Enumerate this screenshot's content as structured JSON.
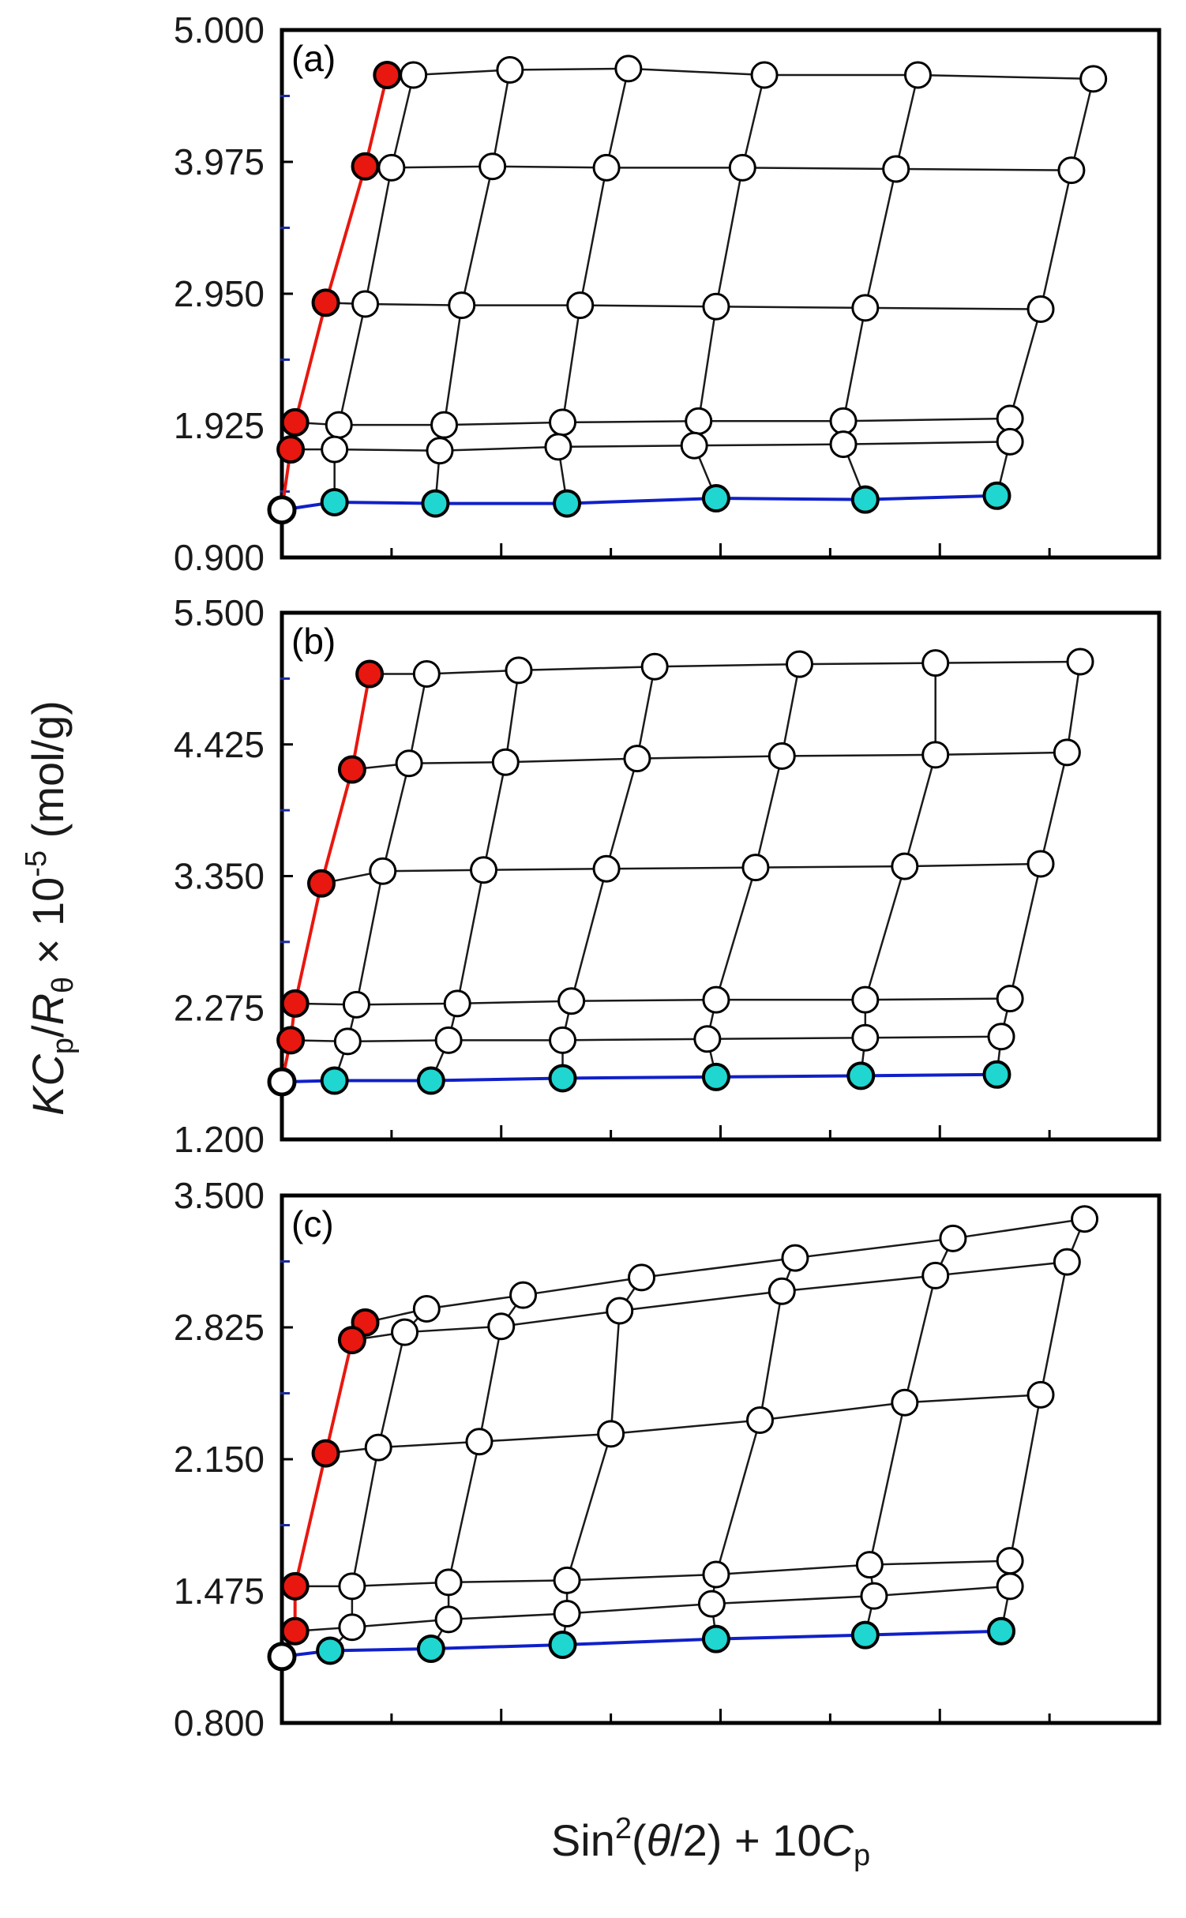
{
  "figure": {
    "ylabel": {
      "K": "K",
      "Cp_main": "C",
      "Cp_sub": "p",
      "slash": "/",
      "R_main": "R",
      "R_sub": "θ",
      "rest": " × 10",
      "exp": "-5",
      "unit": " (mol/g)"
    },
    "xlabel": {
      "sin": "Sin",
      "exp": "2",
      "open": "(",
      "theta": "θ",
      "close": "/2) + 10",
      "C": "C",
      "sub": "p"
    }
  },
  "colors": {
    "red": "#e8170f",
    "blue": "#1020c8",
    "cyan": "#1fd6d0",
    "white": "#ffffff",
    "grid_line": "#1a1a1a",
    "minor_tick": "#1a2aa0"
  },
  "chart_data": [
    {
      "type": "scatter",
      "panel_label": "(a)",
      "ylim": [
        0.9,
        5.0
      ],
      "yticks": [
        "0.900",
        "1.925",
        "2.950",
        "3.975",
        "5.000"
      ],
      "x_grid": [
        [
          0.3,
          0.52,
          0.79,
          1.1,
          1.45,
          1.85
        ],
        [
          0.25,
          0.48,
          0.74,
          1.05,
          1.4,
          1.8
        ],
        [
          0.19,
          0.41,
          0.68,
          0.99,
          1.33,
          1.73
        ],
        [
          0.13,
          0.37,
          0.64,
          0.95,
          1.28,
          1.66
        ],
        [
          0.12,
          0.36,
          0.63,
          0.94,
          1.28,
          1.66
        ]
      ],
      "y_grid": [
        [
          4.65,
          4.69,
          4.7,
          4.65,
          4.65,
          4.62
        ],
        [
          3.93,
          3.94,
          3.93,
          3.93,
          3.92,
          3.91
        ],
        [
          2.87,
          2.86,
          2.86,
          2.85,
          2.84,
          2.83
        ],
        [
          1.93,
          1.93,
          1.95,
          1.96,
          1.96,
          1.98
        ],
        [
          1.74,
          1.73,
          1.76,
          1.77,
          1.78,
          1.8
        ]
      ],
      "extrap_c": [
        0.24,
        0.19,
        0.1,
        0.03,
        0.02
      ],
      "extrap_y": [
        4.65,
        3.94,
        2.88,
        1.95,
        1.74
      ],
      "zero_c_x": [
        0.12,
        0.35,
        0.65,
        0.99,
        1.33,
        1.63
      ],
      "zero_c_y": [
        1.33,
        1.32,
        1.32,
        1.36,
        1.35,
        1.38
      ],
      "origin": [
        0.0,
        1.27
      ]
    },
    {
      "type": "scatter",
      "panel_label": "(b)",
      "ylim": [
        1.2,
        5.5
      ],
      "yticks": [
        "1.200",
        "2.275",
        "3.350",
        "4.425",
        "5.500"
      ],
      "x_grid": [
        [
          0.33,
          0.54,
          0.85,
          1.18,
          1.49,
          1.82
        ],
        [
          0.29,
          0.51,
          0.81,
          1.14,
          1.49,
          1.79
        ],
        [
          0.23,
          0.46,
          0.74,
          1.08,
          1.42,
          1.73
        ],
        [
          0.17,
          0.4,
          0.66,
          0.99,
          1.33,
          1.66
        ],
        [
          0.15,
          0.38,
          0.64,
          0.97,
          1.33,
          1.64
        ]
      ],
      "y_grid": [
        [
          5.0,
          5.03,
          5.06,
          5.08,
          5.09,
          5.1
        ],
        [
          4.27,
          4.28,
          4.31,
          4.33,
          4.34,
          4.36
        ],
        [
          3.39,
          3.4,
          3.41,
          3.42,
          3.43,
          3.45
        ],
        [
          2.3,
          2.31,
          2.33,
          2.34,
          2.34,
          2.35
        ],
        [
          2.0,
          2.01,
          2.01,
          2.02,
          2.03,
          2.04
        ]
      ],
      "extrap_c": [
        0.2,
        0.16,
        0.09,
        0.03,
        0.02
      ],
      "extrap_y": [
        5.0,
        4.22,
        3.29,
        2.31,
        2.01
      ],
      "zero_c_x": [
        0.12,
        0.34,
        0.64,
        0.99,
        1.32,
        1.63
      ],
      "zero_c_y": [
        1.68,
        1.68,
        1.7,
        1.71,
        1.72,
        1.73
      ],
      "origin": [
        0.0,
        1.67
      ]
    },
    {
      "type": "scatter",
      "panel_label": "(c)",
      "ylim": [
        0.8,
        3.5
      ],
      "yticks": [
        "0.800",
        "1.475",
        "2.150",
        "2.825",
        "3.500"
      ],
      "x_grid": [
        [
          0.33,
          0.55,
          0.82,
          1.17,
          1.53,
          1.83
        ],
        [
          0.28,
          0.5,
          0.77,
          1.14,
          1.49,
          1.79
        ],
        [
          0.22,
          0.45,
          0.75,
          1.09,
          1.42,
          1.73
        ],
        [
          0.16,
          0.38,
          0.65,
          0.99,
          1.34,
          1.66
        ],
        [
          0.16,
          0.38,
          0.65,
          0.98,
          1.35,
          1.66
        ]
      ],
      "y_grid": [
        [
          2.92,
          2.99,
          3.08,
          3.18,
          3.28,
          3.38
        ],
        [
          2.8,
          2.83,
          2.91,
          3.01,
          3.09,
          3.16
        ],
        [
          2.21,
          2.24,
          2.28,
          2.35,
          2.44,
          2.48
        ],
        [
          1.5,
          1.52,
          1.53,
          1.56,
          1.61,
          1.63
        ],
        [
          1.29,
          1.33,
          1.36,
          1.41,
          1.45,
          1.5
        ]
      ],
      "extrap_c": [
        0.19,
        0.16,
        0.1,
        0.03,
        0.03
      ],
      "extrap_y": [
        2.85,
        2.76,
        2.18,
        1.5,
        1.27
      ],
      "zero_c_x": [
        0.11,
        0.34,
        0.64,
        0.99,
        1.33,
        1.64
      ],
      "zero_c_y": [
        1.17,
        1.18,
        1.2,
        1.23,
        1.25,
        1.27
      ],
      "origin": [
        0.0,
        1.14
      ]
    }
  ]
}
